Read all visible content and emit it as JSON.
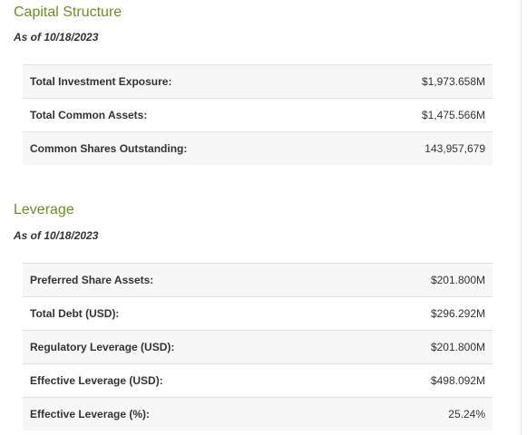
{
  "capital_structure": {
    "title": "Capital Structure",
    "as_of": "As of 10/18/2023",
    "rows": [
      {
        "label": "Total Investment Exposure:",
        "value": "$1,973.658M"
      },
      {
        "label": "Total Common Assets:",
        "value": "$1,475.566M"
      },
      {
        "label": "Common Shares Outstanding:",
        "value": "143,957,679"
      }
    ]
  },
  "leverage": {
    "title": "Leverage",
    "as_of": "As of 10/18/2023",
    "rows": [
      {
        "label": "Preferred Share Assets:",
        "value": "$201.800M"
      },
      {
        "label": "Total Debt (USD):",
        "value": "$296.292M"
      },
      {
        "label": "Regulatory Leverage (USD):",
        "value": "$201.800M"
      },
      {
        "label": "Effective Leverage (USD):",
        "value": "$498.092M"
      },
      {
        "label": "Effective Leverage (%):",
        "value": "25.24%"
      }
    ]
  }
}
